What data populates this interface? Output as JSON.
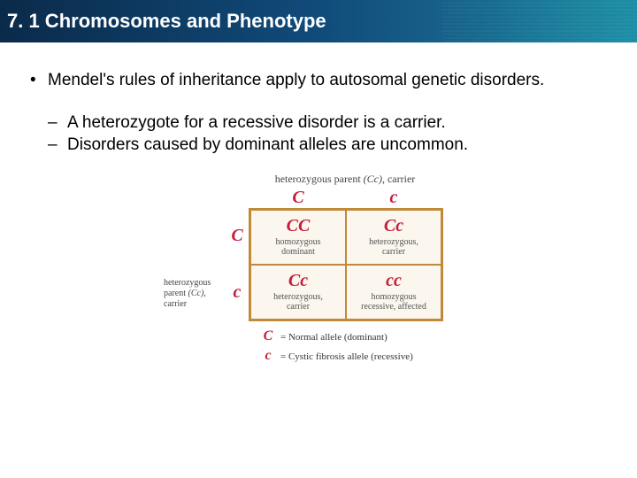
{
  "header": {
    "title": "7. 1 Chromosomes and Phenotype"
  },
  "bullets": {
    "main": "Mendel's rules of inheritance apply to autosomal genetic disorders.",
    "sub1": "A heterozygote for a recessive disorder is a carrier.",
    "sub2": "Disorders caused by dominant alleles are uncommon."
  },
  "punnett": {
    "top_label": "heterozygous parent (Cc), carrier",
    "left_label_lines": [
      "heterozygous",
      "parent (Cc),",
      "carrier"
    ],
    "alleles": {
      "dom": "C",
      "rec": "c"
    },
    "colors": {
      "dom": "#c41e3a",
      "rec": "#c41e3a",
      "cell_border": "#c08a3a",
      "cell_bg": "#fbf6ee"
    },
    "cells": [
      [
        {
          "geno_parts": [
            [
              "C",
              "dom"
            ],
            [
              "C",
              "dom"
            ]
          ],
          "desc": "homozygous\ndominant"
        },
        {
          "geno_parts": [
            [
              "C",
              "dom"
            ],
            [
              "c",
              "rec"
            ]
          ],
          "desc": "heterozygous,\ncarrier"
        }
      ],
      [
        {
          "geno_parts": [
            [
              "C",
              "dom"
            ],
            [
              "c",
              "rec"
            ]
          ],
          "desc": "heterozygous,\ncarrier"
        },
        {
          "geno_parts": [
            [
              "c",
              "rec"
            ],
            [
              "c",
              "rec"
            ]
          ],
          "desc": "homozygous\nrecessive, affected"
        }
      ]
    ],
    "legend": [
      {
        "sym": "C",
        "cls": "dom",
        "text": "= Normal allele (dominant)"
      },
      {
        "sym": "c",
        "cls": "rec",
        "text": "= Cystic fibrosis allele (recessive)"
      }
    ]
  }
}
